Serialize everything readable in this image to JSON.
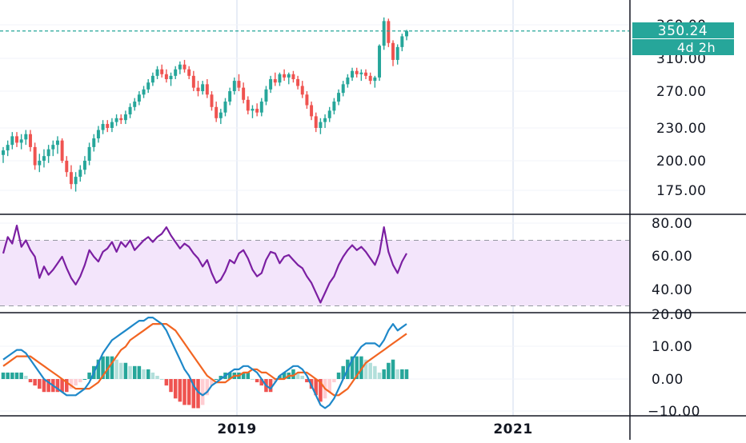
{
  "chart_data": {
    "type": "candlestick",
    "x_axis": {
      "ticks": [
        "2019",
        "2021"
      ]
    },
    "colors": {
      "up": "#26a69a",
      "down": "#ef5350",
      "rsi_line": "#7b1fa2",
      "rsi_band": "#f3e5fb",
      "macd_line": "#1e88c9",
      "signal_line": "#f26522",
      "hist_up_strong": "#26a69a",
      "hist_up_weak": "#b2dfdb",
      "hist_down_strong": "#ef5350",
      "hist_down_weak": "#ffcdd2",
      "label_bg": "#26a69a",
      "grid": "#e0e3eb",
      "axis": "#131722"
    },
    "price_panel": {
      "y_axis_ticks": [
        "175.00",
        "200.00",
        "230.00",
        "270.00",
        "310.00",
        "360.00"
      ],
      "last_price_label": "350.24",
      "countdown_label": "4d 2h",
      "last_price": 350.24,
      "ohlc": [
        [
          205,
          212,
          198,
          209
        ],
        [
          209,
          218,
          204,
          214
        ],
        [
          214,
          226,
          210,
          222
        ],
        [
          222,
          226,
          212,
          216
        ],
        [
          216,
          224,
          210,
          219
        ],
        [
          219,
          228,
          214,
          224
        ],
        [
          224,
          228,
          208,
          212
        ],
        [
          212,
          216,
          192,
          196
        ],
        [
          196,
          206,
          190,
          200
        ],
        [
          200,
          210,
          194,
          204
        ],
        [
          204,
          214,
          198,
          210
        ],
        [
          210,
          218,
          204,
          214
        ],
        [
          214,
          222,
          206,
          218
        ],
        [
          218,
          220,
          198,
          200
        ],
        [
          200,
          204,
          186,
          190
        ],
        [
          190,
          196,
          176,
          180
        ],
        [
          180,
          190,
          174,
          186
        ],
        [
          186,
          196,
          182,
          192
        ],
        [
          192,
          204,
          188,
          200
        ],
        [
          200,
          216,
          196,
          212
        ],
        [
          212,
          224,
          208,
          220
        ],
        [
          220,
          232,
          216,
          228
        ],
        [
          228,
          238,
          224,
          234
        ],
        [
          234,
          238,
          226,
          230
        ],
        [
          230,
          240,
          226,
          236
        ],
        [
          236,
          244,
          232,
          240
        ],
        [
          240,
          244,
          234,
          238
        ],
        [
          238,
          248,
          234,
          244
        ],
        [
          244,
          256,
          240,
          252
        ],
        [
          252,
          262,
          248,
          258
        ],
        [
          258,
          270,
          254,
          266
        ],
        [
          266,
          276,
          262,
          272
        ],
        [
          272,
          284,
          268,
          280
        ],
        [
          280,
          292,
          276,
          288
        ],
        [
          288,
          300,
          284,
          296
        ],
        [
          296,
          302,
          286,
          290
        ],
        [
          290,
          296,
          280,
          284
        ],
        [
          284,
          292,
          276,
          288
        ],
        [
          288,
          300,
          284,
          296
        ],
        [
          296,
          306,
          290,
          302
        ],
        [
          302,
          308,
          292,
          296
        ],
        [
          296,
          300,
          284,
          288
        ],
        [
          288,
          294,
          270,
          274
        ],
        [
          274,
          282,
          264,
          270
        ],
        [
          270,
          282,
          266,
          278
        ],
        [
          278,
          284,
          262,
          266
        ],
        [
          266,
          270,
          248,
          252
        ],
        [
          252,
          258,
          236,
          240
        ],
        [
          240,
          250,
          234,
          246
        ],
        [
          246,
          262,
          242,
          258
        ],
        [
          258,
          274,
          254,
          270
        ],
        [
          270,
          286,
          266,
          282
        ],
        [
          282,
          290,
          270,
          274
        ],
        [
          274,
          280,
          256,
          260
        ],
        [
          260,
          264,
          244,
          248
        ],
        [
          248,
          254,
          240,
          250
        ],
        [
          250,
          256,
          242,
          246
        ],
        [
          246,
          262,
          242,
          258
        ],
        [
          258,
          276,
          254,
          272
        ],
        [
          272,
          288,
          268,
          284
        ],
        [
          284,
          292,
          276,
          280
        ],
        [
          280,
          292,
          276,
          290
        ],
        [
          290,
          296,
          282,
          286
        ],
        [
          286,
          292,
          278,
          290
        ],
        [
          290,
          294,
          280,
          284
        ],
        [
          284,
          288,
          272,
          276
        ],
        [
          276,
          282,
          262,
          266
        ],
        [
          266,
          270,
          250,
          254
        ],
        [
          254,
          258,
          238,
          242
        ],
        [
          242,
          246,
          226,
          230
        ],
        [
          230,
          240,
          224,
          236
        ],
        [
          236,
          244,
          230,
          240
        ],
        [
          240,
          252,
          236,
          248
        ],
        [
          248,
          262,
          244,
          258
        ],
        [
          258,
          272,
          254,
          268
        ],
        [
          268,
          282,
          264,
          278
        ],
        [
          278,
          290,
          274,
          286
        ],
        [
          286,
          298,
          282,
          294
        ],
        [
          294,
          298,
          286,
          290
        ],
        [
          290,
          296,
          282,
          292
        ],
        [
          292,
          296,
          284,
          288
        ],
        [
          288,
          292,
          278,
          282
        ],
        [
          282,
          288,
          274,
          286
        ],
        [
          286,
          330,
          282,
          328
        ],
        [
          328,
          372,
          322,
          366
        ],
        [
          366,
          370,
          326,
          332
        ],
        [
          332,
          336,
          300,
          308
        ],
        [
          308,
          330,
          302,
          326
        ],
        [
          326,
          346,
          320,
          342
        ],
        [
          342,
          352,
          336,
          350.24
        ]
      ]
    },
    "rsi_panel": {
      "y_axis_ticks": [
        "40.00",
        "60.00",
        "80.00"
      ],
      "band": [
        30,
        70
      ],
      "values": [
        62,
        72,
        68,
        79,
        66,
        70,
        64,
        60,
        47,
        54,
        49,
        52,
        56,
        60,
        53,
        47,
        43,
        48,
        55,
        64,
        60,
        57,
        63,
        65,
        69,
        63,
        69,
        66,
        70,
        64,
        67,
        70,
        72,
        69,
        72,
        74,
        78,
        73,
        69,
        65,
        68,
        66,
        62,
        59,
        54,
        58,
        50,
        44,
        46,
        51,
        58,
        56,
        62,
        64,
        59,
        52,
        48,
        50,
        58,
        63,
        62,
        56,
        60,
        61,
        58,
        55,
        53,
        48,
        44,
        38,
        32,
        38,
        44,
        48,
        55,
        60,
        64,
        67,
        64,
        66,
        63,
        59,
        55,
        62,
        78,
        63,
        55,
        50,
        57,
        62
      ]
    },
    "macd_panel": {
      "y_axis_ticks": [
        "−10.00",
        "0.00",
        "10.00",
        "20.00"
      ],
      "macd": [
        6,
        7,
        8,
        9,
        9,
        8,
        6,
        4,
        2,
        0,
        -1,
        -2,
        -3,
        -4,
        -5,
        -5,
        -5,
        -4,
        -3,
        -1,
        2,
        5,
        8,
        10,
        12,
        13,
        14,
        15,
        16,
        17,
        18,
        18,
        19,
        19,
        18,
        17,
        15,
        12,
        9,
        6,
        3,
        1,
        -2,
        -4,
        -5,
        -4,
        -2,
        -1,
        0,
        1,
        2,
        3,
        3,
        4,
        4,
        3,
        2,
        0,
        -2,
        -3,
        -1,
        1,
        2,
        3,
        4,
        4,
        3,
        1,
        -2,
        -5,
        -8,
        -9,
        -8,
        -6,
        -3,
        0,
        3,
        6,
        8,
        10,
        11,
        11,
        11,
        10,
        12,
        15,
        17,
        15,
        16,
        17
      ],
      "signal": [
        4,
        5,
        6,
        7,
        7,
        7,
        7,
        6,
        5,
        4,
        3,
        2,
        1,
        0,
        -1,
        -2,
        -3,
        -3,
        -3,
        -3,
        -2,
        -1,
        1,
        3,
        5,
        7,
        9,
        10,
        12,
        13,
        14,
        15,
        16,
        17,
        17,
        17,
        17,
        16,
        15,
        13,
        11,
        9,
        7,
        5,
        3,
        1,
        0,
        -1,
        -1,
        -1,
        0,
        1,
        1,
        2,
        2,
        3,
        3,
        2,
        2,
        1,
        0,
        0,
        0,
        1,
        1,
        2,
        2,
        2,
        1,
        0,
        -1,
        -3,
        -4,
        -5,
        -5,
        -4,
        -3,
        -1,
        1,
        3,
        5,
        6,
        7,
        8,
        9,
        10,
        11,
        12,
        13,
        14
      ],
      "histogram": [
        2,
        2,
        2,
        2,
        2,
        1,
        -1,
        -2,
        -3,
        -4,
        -4,
        -4,
        -4,
        -4,
        -4,
        -3,
        -2,
        -1,
        0,
        2,
        4,
        6,
        7,
        7,
        7,
        6,
        5,
        5,
        4,
        4,
        4,
        3,
        3,
        2,
        1,
        0,
        -2,
        -4,
        -6,
        -7,
        -8,
        -8,
        -9,
        -9,
        -8,
        -5,
        -2,
        0,
        1,
        2,
        2,
        2,
        2,
        2,
        2,
        0,
        -1,
        -2,
        -4,
        -4,
        -1,
        1,
        2,
        2,
        3,
        2,
        1,
        -1,
        -3,
        -5,
        -7,
        -6,
        -4,
        -1,
        2,
        4,
        6,
        7,
        7,
        7,
        6,
        5,
        4,
        2,
        3,
        5,
        6,
        3,
        3,
        3
      ]
    }
  }
}
